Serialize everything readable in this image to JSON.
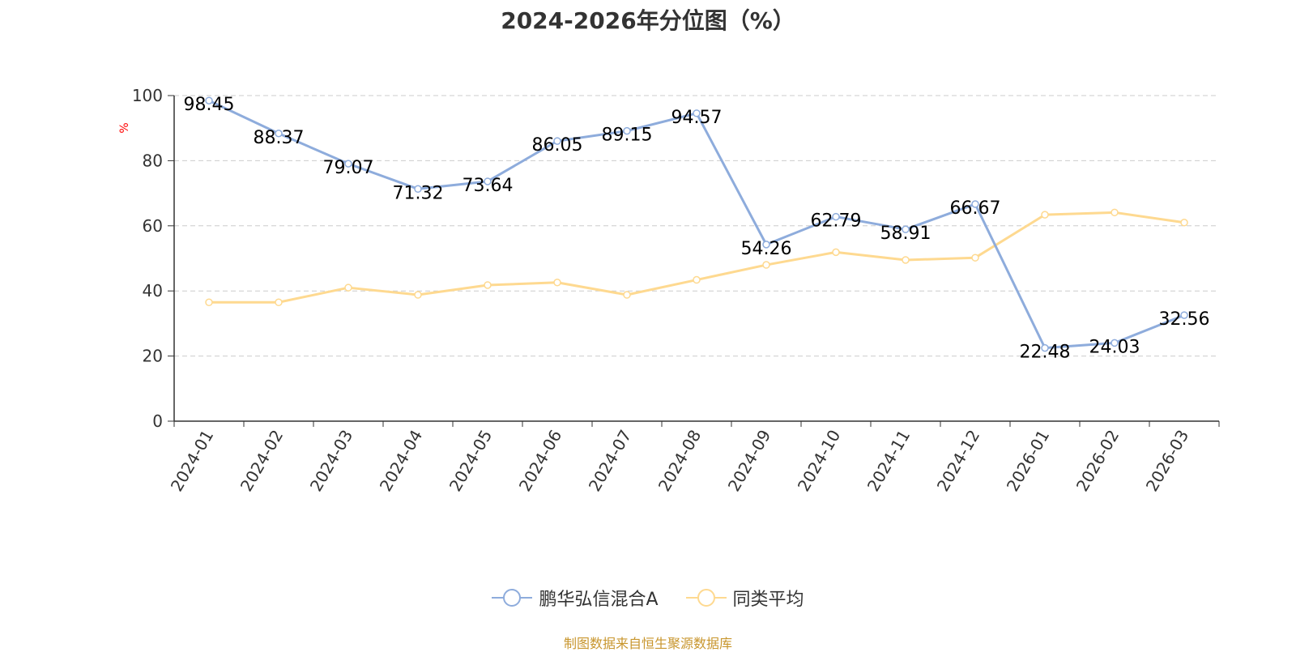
{
  "title": "2024-2026年分位图（%）",
  "source": "制图数据来自恒生聚源数据库",
  "colors": {
    "series_a": "#8eacdc",
    "series_b": "#fed990",
    "grid": "#cccccc",
    "axis": "#333333",
    "ylabel": "#ff0000",
    "text": "#333333"
  },
  "chart_data": {
    "type": "line",
    "ylabel": "%",
    "ylim": [
      0,
      100
    ],
    "yticks": [
      0,
      20,
      40,
      60,
      80,
      100
    ],
    "grid": true,
    "legend_position": "bottom-center",
    "categories": [
      "2024-01",
      "2024-02",
      "2024-03",
      "2024-04",
      "2024-05",
      "2024-06",
      "2024-07",
      "2024-08",
      "2024-09",
      "2024-10",
      "2024-11",
      "2024-12",
      "2026-01",
      "2026-02",
      "2026-03"
    ],
    "series": [
      {
        "name": "鹏华弘信混合A",
        "values": [
          98.45,
          88.37,
          79.07,
          71.32,
          73.64,
          86.05,
          89.15,
          94.57,
          54.26,
          62.79,
          58.91,
          66.67,
          22.48,
          24.03,
          32.56
        ],
        "labels": [
          "98.45",
          "88.37",
          "79.07",
          "71.32",
          "73.64",
          "86.05",
          "89.15",
          "94.57",
          "54.26",
          "62.79",
          "58.91",
          "66.67",
          "22.48",
          "24.03",
          "32.56"
        ],
        "show_labels": true
      },
      {
        "name": "同类平均",
        "values": [
          36.5,
          36.5,
          41.0,
          38.8,
          41.8,
          42.6,
          38.8,
          43.4,
          48.0,
          51.9,
          49.5,
          50.2,
          63.4,
          64.1,
          61.0
        ],
        "show_labels": false
      }
    ]
  }
}
